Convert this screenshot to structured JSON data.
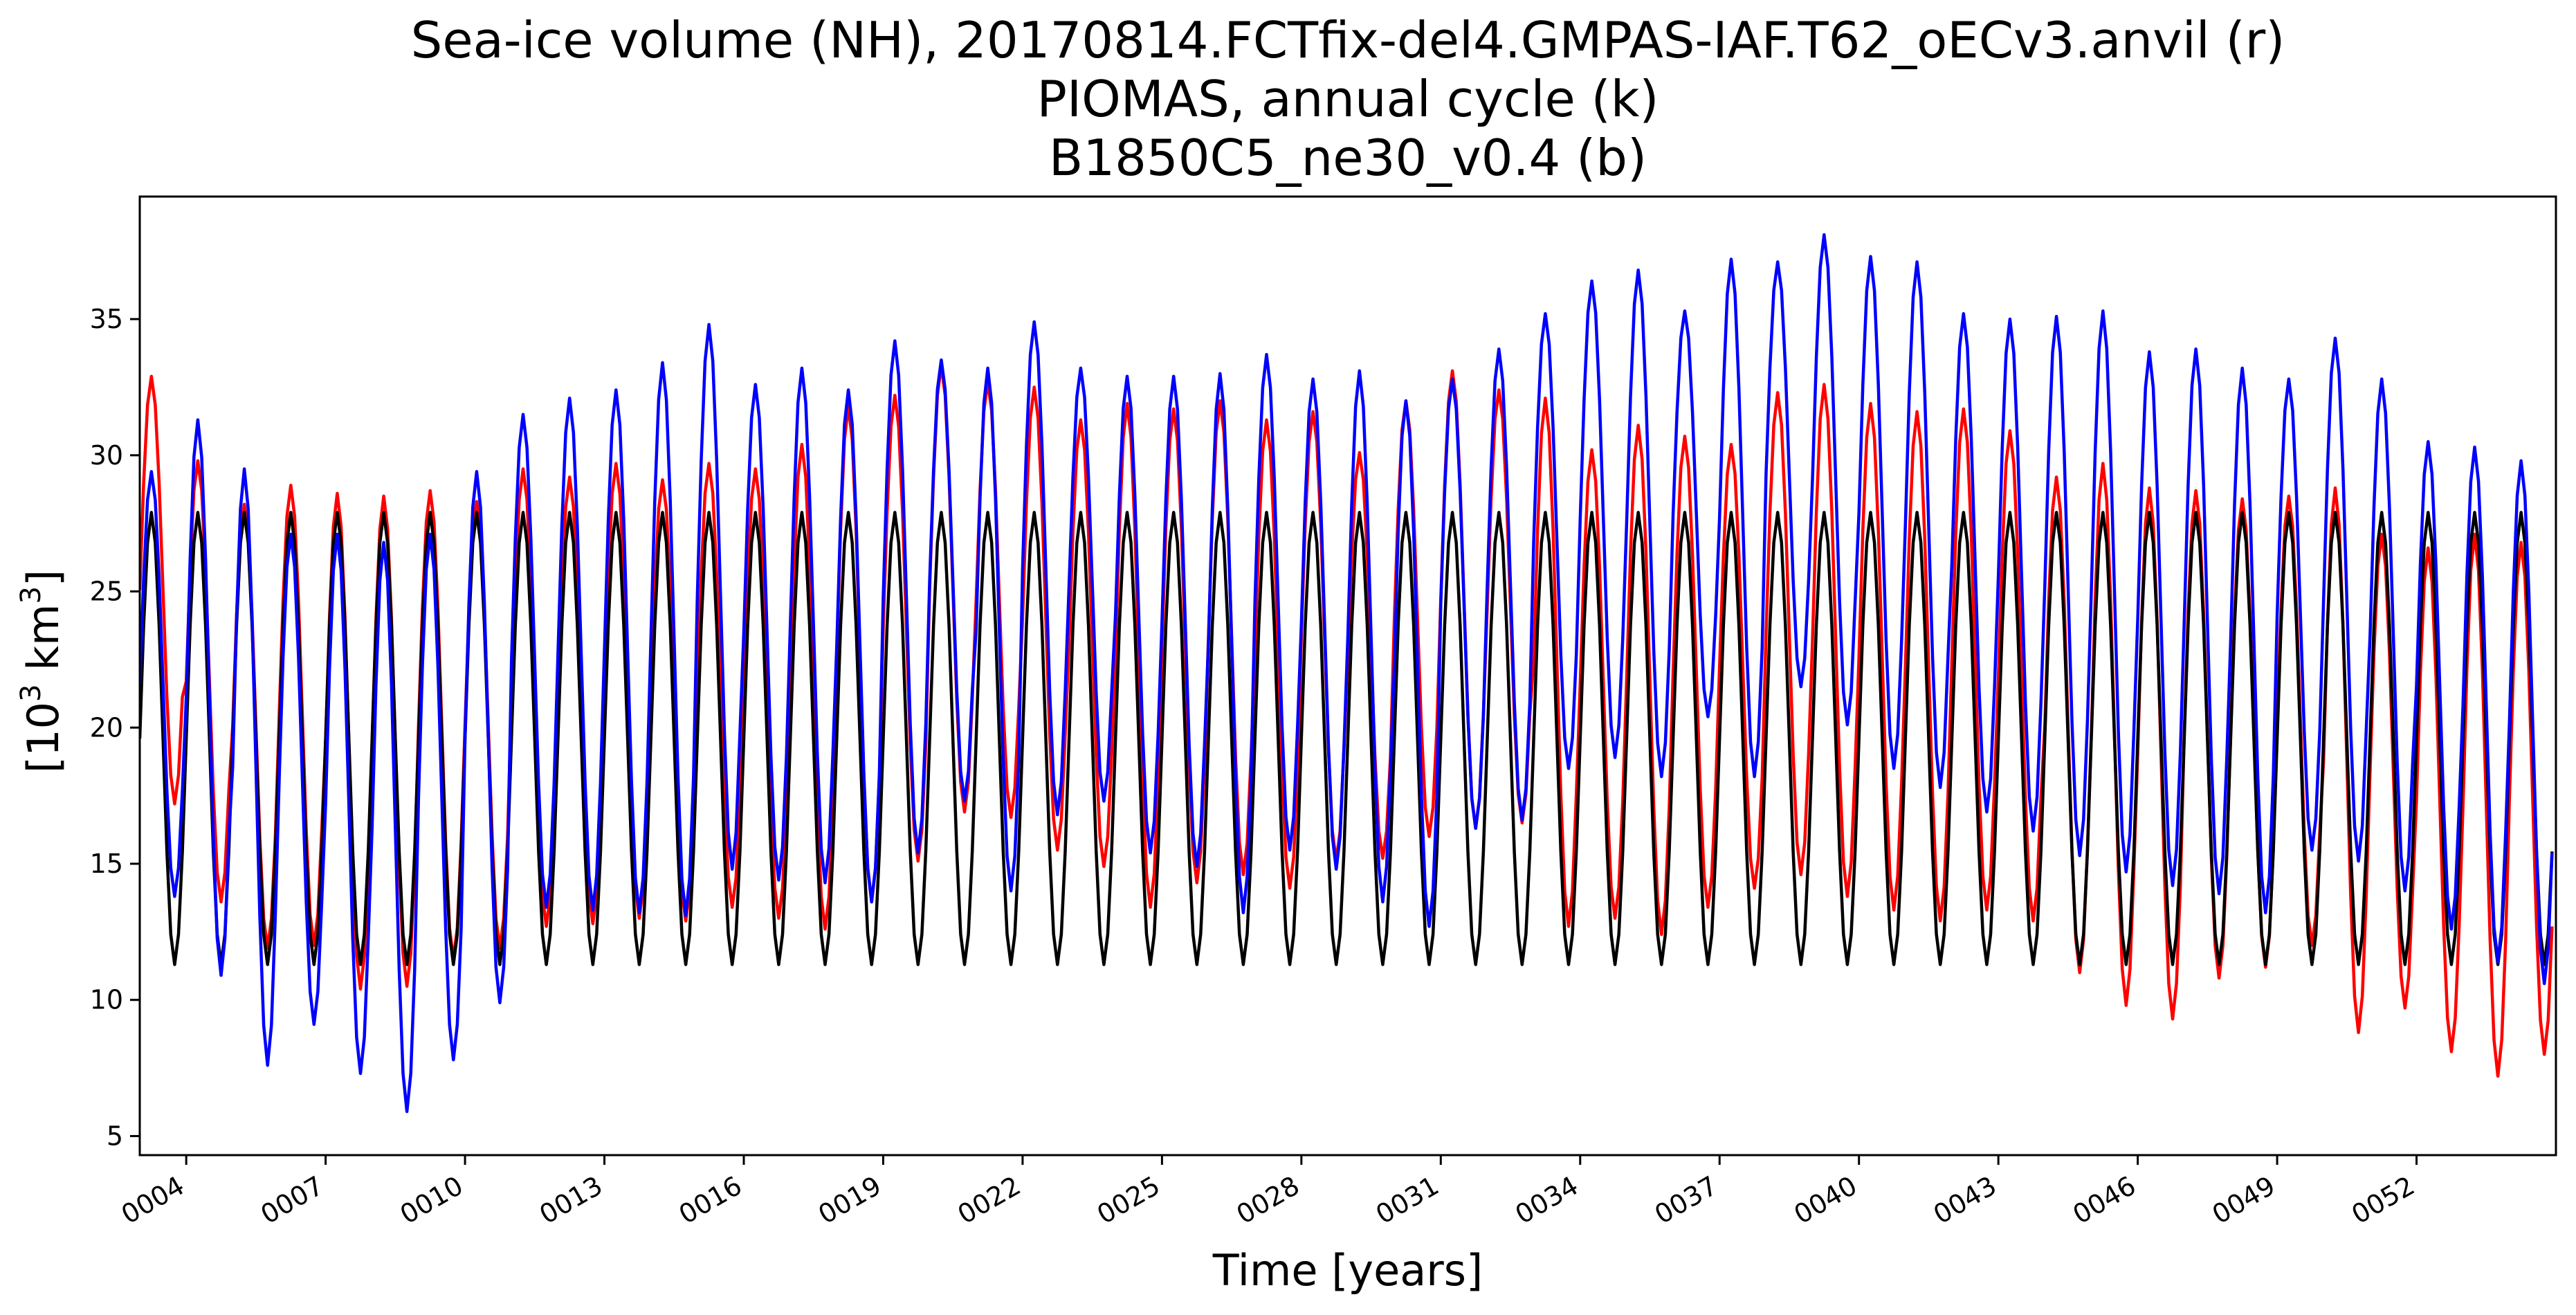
{
  "chart_data": {
    "type": "line",
    "title_lines": [
      "Sea-ice volume (NH), 20170814.FCTfix-del4.GMPAS-IAF.T62_oECv3.anvil (r)",
      "PIOMAS, annual cycle (k)",
      "B1850C5_ne30_v0.4 (b)"
    ],
    "xlabel": "Time [years]",
    "ylabel_prefix": "[10",
    "ylabel_sup": "3",
    "ylabel_suffix": " km",
    "ylabel_sup2": "3",
    "ylabel_end": "]",
    "xlim": [
      3.0,
      55.0
    ],
    "ylim": [
      4.3,
      39.5
    ],
    "x_ticks": [
      4,
      7,
      10,
      13,
      16,
      19,
      22,
      25,
      28,
      31,
      34,
      37,
      40,
      43,
      46,
      49,
      52
    ],
    "x_tick_labels": [
      "0004",
      "0007",
      "0010",
      "0013",
      "0016",
      "0019",
      "0022",
      "0025",
      "0028",
      "0031",
      "0034",
      "0037",
      "0040",
      "0043",
      "0046",
      "0049",
      "0052"
    ],
    "y_ticks": [
      5,
      10,
      15,
      20,
      25,
      30,
      35
    ],
    "y_tick_labels": [
      "5",
      "10",
      "15",
      "20",
      "25",
      "30",
      "35"
    ],
    "grid": false,
    "series_colors": {
      "r": "#ff0000",
      "k": "#000000",
      "b": "#0000ff"
    },
    "year_start": 3,
    "year_end": 55,
    "annual_cycle_k": {
      "min": 11.3,
      "max": 27.9
    },
    "series_b": {
      "max_by_year": [
        29.4,
        31.3,
        29.5,
        27.1,
        27.1,
        26.8,
        27.1,
        29.4,
        31.5,
        32.1,
        32.4,
        33.4,
        34.8,
        32.6,
        33.2,
        32.4,
        34.2,
        33.5,
        33.2,
        34.9,
        33.2,
        32.9,
        32.9,
        33.0,
        33.7,
        32.8,
        33.1,
        32.0,
        32.8,
        33.9,
        35.2,
        36.4,
        36.8,
        35.3,
        37.2,
        37.1,
        38.1,
        37.3,
        37.1,
        35.2,
        35.0,
        35.1,
        35.3,
        33.8,
        33.9,
        33.2,
        32.8,
        34.3,
        32.8,
        30.5,
        30.3,
        29.8
      ],
      "min_by_year": [
        13.8,
        10.9,
        7.6,
        9.1,
        7.3,
        5.9,
        7.8,
        9.9,
        13.4,
        13.3,
        13.2,
        13.1,
        14.8,
        14.4,
        14.3,
        13.6,
        15.4,
        17.3,
        14.0,
        16.8,
        17.3,
        15.4,
        14.9,
        13.2,
        15.5,
        14.8,
        13.6,
        12.7,
        16.3,
        16.6,
        18.5,
        18.9,
        18.2,
        20.4,
        18.2,
        21.5,
        20.1,
        18.5,
        17.8,
        16.9,
        16.2,
        15.3,
        14.7,
        14.2,
        13.9,
        13.2,
        15.5,
        15.1,
        14.0,
        12.6,
        11.4,
        10.6
      ]
    },
    "series_r": {
      "max_by_year": [
        32.9,
        29.8,
        28.2,
        28.9,
        28.6,
        28.5,
        28.7,
        28.3,
        29.5,
        29.2,
        29.7,
        29.1,
        29.7,
        29.5,
        30.4,
        31.8,
        32.2,
        33.3,
        32.7,
        32.5,
        31.3,
        31.9,
        31.7,
        32.0,
        31.3,
        31.6,
        30.1,
        32.0,
        33.1,
        32.4,
        32.1,
        30.2,
        31.1,
        30.7,
        30.4,
        32.3,
        32.6,
        31.9,
        31.6,
        31.7,
        30.9,
        29.2,
        29.7,
        28.8,
        28.7,
        28.4,
        28.5,
        28.8,
        27.1,
        26.6,
        27.1,
        26.8
      ],
      "min_by_year": [
        17.2,
        13.6,
        11.9,
        12.0,
        10.4,
        10.5,
        11.5,
        11.9,
        12.7,
        12.8,
        13.0,
        12.9,
        13.4,
        13.0,
        12.6,
        13.6,
        15.1,
        16.9,
        16.7,
        15.5,
        14.9,
        13.4,
        14.3,
        14.6,
        14.1,
        15.1,
        15.2,
        16.0,
        16.3,
        16.5,
        12.7,
        13.0,
        12.4,
        13.4,
        14.1,
        14.6,
        13.8,
        13.3,
        12.9,
        13.3,
        12.9,
        11.0,
        9.8,
        9.3,
        10.8,
        11.2,
        12.0,
        8.8,
        9.7,
        8.1,
        7.2,
        8.0
      ]
    }
  }
}
